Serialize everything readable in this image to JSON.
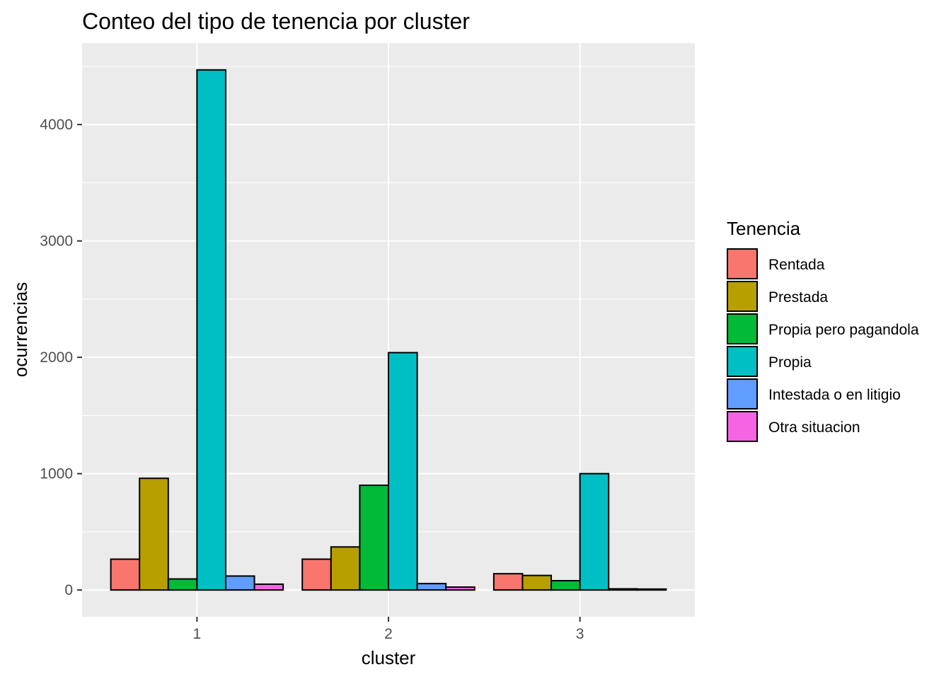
{
  "chart_data": {
    "type": "bar",
    "title": "Conteo del tipo de tenencia por cluster",
    "xlabel": "cluster",
    "ylabel": "ocurrencias",
    "categories": [
      "1",
      "2",
      "3"
    ],
    "yticks": [
      0,
      1000,
      2000,
      3000,
      4000
    ],
    "yticks_text": [
      "0",
      "1000",
      "2000",
      "3000",
      "4000"
    ],
    "ylim": [
      -230,
      4700
    ],
    "grid": true,
    "legend": {
      "title": "Tenencia",
      "position": "right"
    },
    "series": [
      {
        "name": "Rentada",
        "color": "#F8766D",
        "values": [
          265,
          265,
          140
        ]
      },
      {
        "name": "Prestada",
        "color": "#B79F00",
        "values": [
          960,
          370,
          125
        ]
      },
      {
        "name": "Propia pero pagandola",
        "color": "#00BA38",
        "values": [
          95,
          900,
          80
        ]
      },
      {
        "name": "Propia",
        "color": "#00BFC4",
        "values": [
          4470,
          2040,
          1000
        ]
      },
      {
        "name": "Intestada o en litigio",
        "color": "#619CFF",
        "values": [
          120,
          55,
          10
        ]
      },
      {
        "name": "Otra situacion",
        "color": "#F564E3",
        "values": [
          50,
          25,
          8
        ]
      }
    ]
  }
}
